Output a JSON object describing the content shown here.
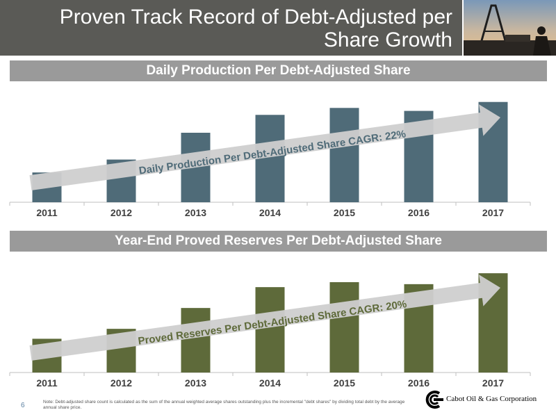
{
  "header": {
    "title_line1": "Proven Track Record of Debt-Adjusted per",
    "title_line2": "Share Growth"
  },
  "footer": {
    "page_number": "6",
    "note": "Note: Debt-adjusted share count is calculated as the sum of the annual weighted average shares outstanding plus the incremental \"debt shares\" by dividing total debt by the average annual share price.",
    "company": "Cabot Oil & Gas Corporation"
  },
  "chart_data": [
    {
      "type": "bar",
      "title": "Daily Production Per Debt-Adjusted Share",
      "categories": [
        "2011",
        "2012",
        "2013",
        "2014",
        "2015",
        "2016",
        "2017"
      ],
      "values": [
        30,
        43,
        70,
        88,
        95,
        92,
        101
      ],
      "ylim": [
        0,
        105
      ],
      "annotation": "Daily Production Per Debt-Adjusted Share CAGR: 22%",
      "color": "#4f6b78",
      "grid": false
    },
    {
      "type": "bar",
      "title": "Year-End Proved Reserves Per Debt-Adjusted Share",
      "categories": [
        "2011",
        "2012",
        "2013",
        "2014",
        "2015",
        "2016",
        "2017"
      ],
      "values": [
        34,
        44,
        65,
        86,
        91,
        89,
        100
      ],
      "ylim": [
        0,
        105
      ],
      "annotation": "Proved Reserves Per Debt-Adjusted Share CAGR: 20%",
      "color": "#5e6a3a",
      "grid": false
    }
  ]
}
